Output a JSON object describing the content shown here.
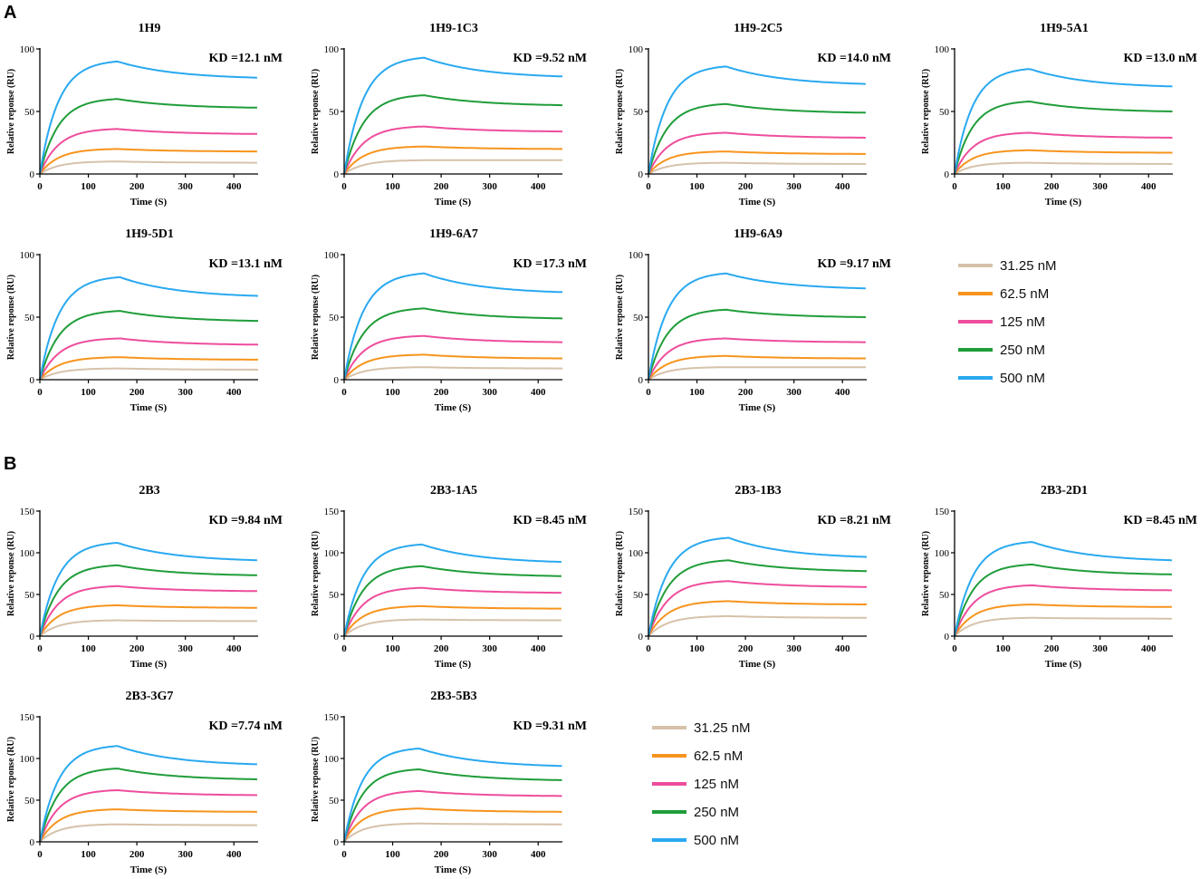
{
  "figure": {
    "sections": [
      {
        "letter": "A",
        "legend_entries": [
          "31.25 nM",
          "62.5 nM",
          "125 nM",
          "250 nM",
          "500 nM"
        ],
        "charts": [
          {
            "title": "1H9",
            "kd": "KD =12.1 nM"
          },
          {
            "title": "1H9-1C3",
            "kd": "KD =9.52 nM"
          },
          {
            "title": "1H9-2C5",
            "kd": "KD =14.0 nM"
          },
          {
            "title": "1H9-5A1",
            "kd": "KD =13.0 nM"
          },
          {
            "title": "1H9-5D1",
            "kd": "KD =13.1 nM"
          },
          {
            "title": "1H9-6A7",
            "kd": "KD =17.3 nM"
          },
          {
            "title": "1H9-6A9",
            "kd": "KD =9.17 nM"
          }
        ]
      },
      {
        "letter": "B",
        "legend_entries": [
          "31.25 nM",
          "62.5 nM",
          "125 nM",
          "250 nM",
          "500 nM"
        ],
        "charts": [
          {
            "title": "2B3",
            "kd": "KD =9.84 nM"
          },
          {
            "title": "2B3-1A5",
            "kd": "KD =8.45 nM"
          },
          {
            "title": "2B3-1B3",
            "kd": "KD =8.21 nM"
          },
          {
            "title": "2B3-2D1",
            "kd": "KD =8.45 nM"
          },
          {
            "title": "2B3-3G7",
            "kd": "KD =7.74 nM"
          },
          {
            "title": "2B3-5B3",
            "kd": "KD =9.31 nM"
          }
        ]
      }
    ]
  },
  "colors": {
    "31.25 nM": "#d6c2aa",
    "62.5 nM": "#f7941d",
    "125 nM": "#ee4d9c",
    "250 nM": "#1f9d3a",
    "500 nM": "#29a9f0",
    "axis": "#000000"
  },
  "chart_data": [
    {
      "type": "line",
      "section": "A",
      "title": "1H9",
      "annotation": "KD =12.1 nM",
      "xlabel": "Time (S)",
      "ylabel": "Relative reponse (RU)",
      "xlim": [
        0,
        450
      ],
      "ylim": [
        0,
        100
      ],
      "xticks": [
        0,
        100,
        200,
        300,
        400
      ],
      "yticks": [
        0,
        50,
        100
      ],
      "peak_time": 160,
      "series": [
        {
          "name": "31.25 nM",
          "peak": 10,
          "end": 9
        },
        {
          "name": "62.5 nM",
          "peak": 20,
          "end": 18
        },
        {
          "name": "125 nM",
          "peak": 36,
          "end": 32
        },
        {
          "name": "250 nM",
          "peak": 60,
          "end": 53
        },
        {
          "name": "500 nM",
          "peak": 90,
          "end": 77
        }
      ]
    },
    {
      "type": "line",
      "section": "A",
      "title": "1H9-1C3",
      "annotation": "KD =9.52 nM",
      "xlabel": "Time (S)",
      "ylabel": "Relative reponse (RU)",
      "xlim": [
        0,
        450
      ],
      "ylim": [
        0,
        100
      ],
      "xticks": [
        0,
        100,
        200,
        300,
        400
      ],
      "yticks": [
        0,
        50,
        100
      ],
      "peak_time": 165,
      "series": [
        {
          "name": "31.25 nM",
          "peak": 11,
          "end": 11
        },
        {
          "name": "62.5 nM",
          "peak": 22,
          "end": 20
        },
        {
          "name": "125 nM",
          "peak": 38,
          "end": 34
        },
        {
          "name": "250 nM",
          "peak": 63,
          "end": 55
        },
        {
          "name": "500 nM",
          "peak": 93,
          "end": 78
        }
      ]
    },
    {
      "type": "line",
      "section": "A",
      "title": "1H9-2C5",
      "annotation": "KD =14.0 nM",
      "xlabel": "Time (S)",
      "ylabel": "Relative reponse (RU)",
      "xlim": [
        0,
        450
      ],
      "ylim": [
        0,
        100
      ],
      "xticks": [
        0,
        100,
        200,
        300,
        400
      ],
      "yticks": [
        0,
        50,
        100
      ],
      "peak_time": 160,
      "series": [
        {
          "name": "31.25 nM",
          "peak": 9,
          "end": 8
        },
        {
          "name": "62.5 nM",
          "peak": 18,
          "end": 16
        },
        {
          "name": "125 nM",
          "peak": 33,
          "end": 29
        },
        {
          "name": "250 nM",
          "peak": 56,
          "end": 49
        },
        {
          "name": "500 nM",
          "peak": 86,
          "end": 72
        }
      ]
    },
    {
      "type": "line",
      "section": "A",
      "title": "1H9-5A1",
      "annotation": "KD =13.0 nM",
      "xlabel": "Time (S)",
      "ylabel": "Relative reponse (RU)",
      "xlim": [
        0,
        450
      ],
      "ylim": [
        0,
        100
      ],
      "xticks": [
        0,
        100,
        200,
        300,
        400
      ],
      "yticks": [
        0,
        50,
        100
      ],
      "peak_time": 155,
      "series": [
        {
          "name": "31.25 nM",
          "peak": 9,
          "end": 8
        },
        {
          "name": "62.5 nM",
          "peak": 19,
          "end": 17
        },
        {
          "name": "125 nM",
          "peak": 33,
          "end": 29
        },
        {
          "name": "250 nM",
          "peak": 58,
          "end": 50
        },
        {
          "name": "500 nM",
          "peak": 84,
          "end": 70
        }
      ]
    },
    {
      "type": "line",
      "section": "A",
      "title": "1H9-5D1",
      "annotation": "KD =13.1 nM",
      "xlabel": "Time (S)",
      "ylabel": "Relative reponse (RU)",
      "xlim": [
        0,
        450
      ],
      "ylim": [
        0,
        100
      ],
      "xticks": [
        0,
        100,
        200,
        300,
        400
      ],
      "yticks": [
        0,
        50,
        100
      ],
      "peak_time": 165,
      "series": [
        {
          "name": "31.25 nM",
          "peak": 9,
          "end": 8
        },
        {
          "name": "62.5 nM",
          "peak": 18,
          "end": 16
        },
        {
          "name": "125 nM",
          "peak": 33,
          "end": 28
        },
        {
          "name": "250 nM",
          "peak": 55,
          "end": 47
        },
        {
          "name": "500 nM",
          "peak": 82,
          "end": 67
        }
      ]
    },
    {
      "type": "line",
      "section": "A",
      "title": "1H9-6A7",
      "annotation": "KD =17.3 nM",
      "xlabel": "Time (S)",
      "ylabel": "Relative reponse (RU)",
      "xlim": [
        0,
        450
      ],
      "ylim": [
        0,
        100
      ],
      "xticks": [
        0,
        100,
        200,
        300,
        400
      ],
      "yticks": [
        0,
        50,
        100
      ],
      "peak_time": 165,
      "series": [
        {
          "name": "31.25 nM",
          "peak": 10,
          "end": 9
        },
        {
          "name": "62.5 nM",
          "peak": 20,
          "end": 17
        },
        {
          "name": "125 nM",
          "peak": 35,
          "end": 30
        },
        {
          "name": "250 nM",
          "peak": 57,
          "end": 49
        },
        {
          "name": "500 nM",
          "peak": 85,
          "end": 70
        }
      ]
    },
    {
      "type": "line",
      "section": "A",
      "title": "1H9-6A9",
      "annotation": "KD =9.17 nM",
      "xlabel": "Time (S)",
      "ylabel": "Relative reponse (RU)",
      "xlim": [
        0,
        450
      ],
      "ylim": [
        0,
        100
      ],
      "xticks": [
        0,
        100,
        200,
        300,
        400
      ],
      "yticks": [
        0,
        50,
        100
      ],
      "peak_time": 160,
      "series": [
        {
          "name": "31.25 nM",
          "peak": 10,
          "end": 10
        },
        {
          "name": "62.5 nM",
          "peak": 19,
          "end": 17
        },
        {
          "name": "125 nM",
          "peak": 33,
          "end": 30
        },
        {
          "name": "250 nM",
          "peak": 56,
          "end": 50
        },
        {
          "name": "500 nM",
          "peak": 85,
          "end": 73
        }
      ]
    },
    {
      "type": "line",
      "section": "B",
      "title": "2B3",
      "annotation": "KD =9.84 nM",
      "xlabel": "Time (S)",
      "ylabel": "Relative reponse (RU)",
      "xlim": [
        0,
        450
      ],
      "ylim": [
        0,
        150
      ],
      "xticks": [
        0,
        100,
        200,
        300,
        400
      ],
      "yticks": [
        0,
        50,
        100,
        150
      ],
      "peak_time": 160,
      "series": [
        {
          "name": "31.25 nM",
          "peak": 19,
          "end": 18
        },
        {
          "name": "62.5 nM",
          "peak": 37,
          "end": 34
        },
        {
          "name": "125 nM",
          "peak": 60,
          "end": 54
        },
        {
          "name": "250 nM",
          "peak": 85,
          "end": 73
        },
        {
          "name": "500 nM",
          "peak": 112,
          "end": 91
        }
      ]
    },
    {
      "type": "line",
      "section": "B",
      "title": "2B3-1A5",
      "annotation": "KD =8.45 nM",
      "xlabel": "Time (S)",
      "ylabel": "Relative reponse (RU)",
      "xlim": [
        0,
        450
      ],
      "ylim": [
        0,
        150
      ],
      "xticks": [
        0,
        100,
        200,
        300,
        400
      ],
      "yticks": [
        0,
        50,
        100,
        150
      ],
      "peak_time": 160,
      "series": [
        {
          "name": "31.25 nM",
          "peak": 20,
          "end": 19
        },
        {
          "name": "62.5 nM",
          "peak": 36,
          "end": 33
        },
        {
          "name": "125 nM",
          "peak": 58,
          "end": 52
        },
        {
          "name": "250 nM",
          "peak": 84,
          "end": 72
        },
        {
          "name": "500 nM",
          "peak": 110,
          "end": 89
        }
      ]
    },
    {
      "type": "line",
      "section": "B",
      "title": "2B3-1B3",
      "annotation": "KD =8.21 nM",
      "xlabel": "Time (S)",
      "ylabel": "Relative reponse (RU)",
      "xlim": [
        0,
        450
      ],
      "ylim": [
        0,
        150
      ],
      "xticks": [
        0,
        100,
        200,
        300,
        400
      ],
      "yticks": [
        0,
        50,
        100,
        150
      ],
      "peak_time": 165,
      "series": [
        {
          "name": "31.25 nM",
          "peak": 24,
          "end": 22
        },
        {
          "name": "62.5 nM",
          "peak": 42,
          "end": 38
        },
        {
          "name": "125 nM",
          "peak": 66,
          "end": 59
        },
        {
          "name": "250 nM",
          "peak": 91,
          "end": 78
        },
        {
          "name": "500 nM",
          "peak": 118,
          "end": 95
        }
      ]
    },
    {
      "type": "line",
      "section": "B",
      "title": "2B3-2D1",
      "annotation": "KD =8.45 nM",
      "xlabel": "Time (S)",
      "ylabel": "Relative reponse (RU)",
      "xlim": [
        0,
        450
      ],
      "ylim": [
        0,
        150
      ],
      "xticks": [
        0,
        100,
        200,
        300,
        400
      ],
      "yticks": [
        0,
        50,
        100,
        150
      ],
      "peak_time": 160,
      "series": [
        {
          "name": "31.25 nM",
          "peak": 22,
          "end": 21
        },
        {
          "name": "62.5 nM",
          "peak": 38,
          "end": 35
        },
        {
          "name": "125 nM",
          "peak": 61,
          "end": 55
        },
        {
          "name": "250 nM",
          "peak": 86,
          "end": 74
        },
        {
          "name": "500 nM",
          "peak": 113,
          "end": 91
        }
      ]
    },
    {
      "type": "line",
      "section": "B",
      "title": "2B3-3G7",
      "annotation": "KD =7.74 nM",
      "xlabel": "Time (S)",
      "ylabel": "Relative reponse (RU)",
      "xlim": [
        0,
        450
      ],
      "ylim": [
        0,
        150
      ],
      "xticks": [
        0,
        100,
        200,
        300,
        400
      ],
      "yticks": [
        0,
        50,
        100,
        150
      ],
      "peak_time": 160,
      "series": [
        {
          "name": "31.25 nM",
          "peak": 21,
          "end": 20
        },
        {
          "name": "62.5 nM",
          "peak": 39,
          "end": 36
        },
        {
          "name": "125 nM",
          "peak": 62,
          "end": 56
        },
        {
          "name": "250 nM",
          "peak": 88,
          "end": 75
        },
        {
          "name": "500 nM",
          "peak": 115,
          "end": 93
        }
      ]
    },
    {
      "type": "line",
      "section": "B",
      "title": "2B3-5B3",
      "annotation": "KD =9.31 nM",
      "xlabel": "Time (S)",
      "ylabel": "Relative reponse (RU)",
      "xlim": [
        0,
        450
      ],
      "ylim": [
        0,
        150
      ],
      "xticks": [
        0,
        100,
        200,
        300,
        400
      ],
      "yticks": [
        0,
        50,
        100,
        150
      ],
      "peak_time": 155,
      "series": [
        {
          "name": "31.25 nM",
          "peak": 22,
          "end": 21
        },
        {
          "name": "62.5 nM",
          "peak": 40,
          "end": 36
        },
        {
          "name": "125 nM",
          "peak": 61,
          "end": 55
        },
        {
          "name": "250 nM",
          "peak": 87,
          "end": 74
        },
        {
          "name": "500 nM",
          "peak": 112,
          "end": 91
        }
      ]
    }
  ]
}
